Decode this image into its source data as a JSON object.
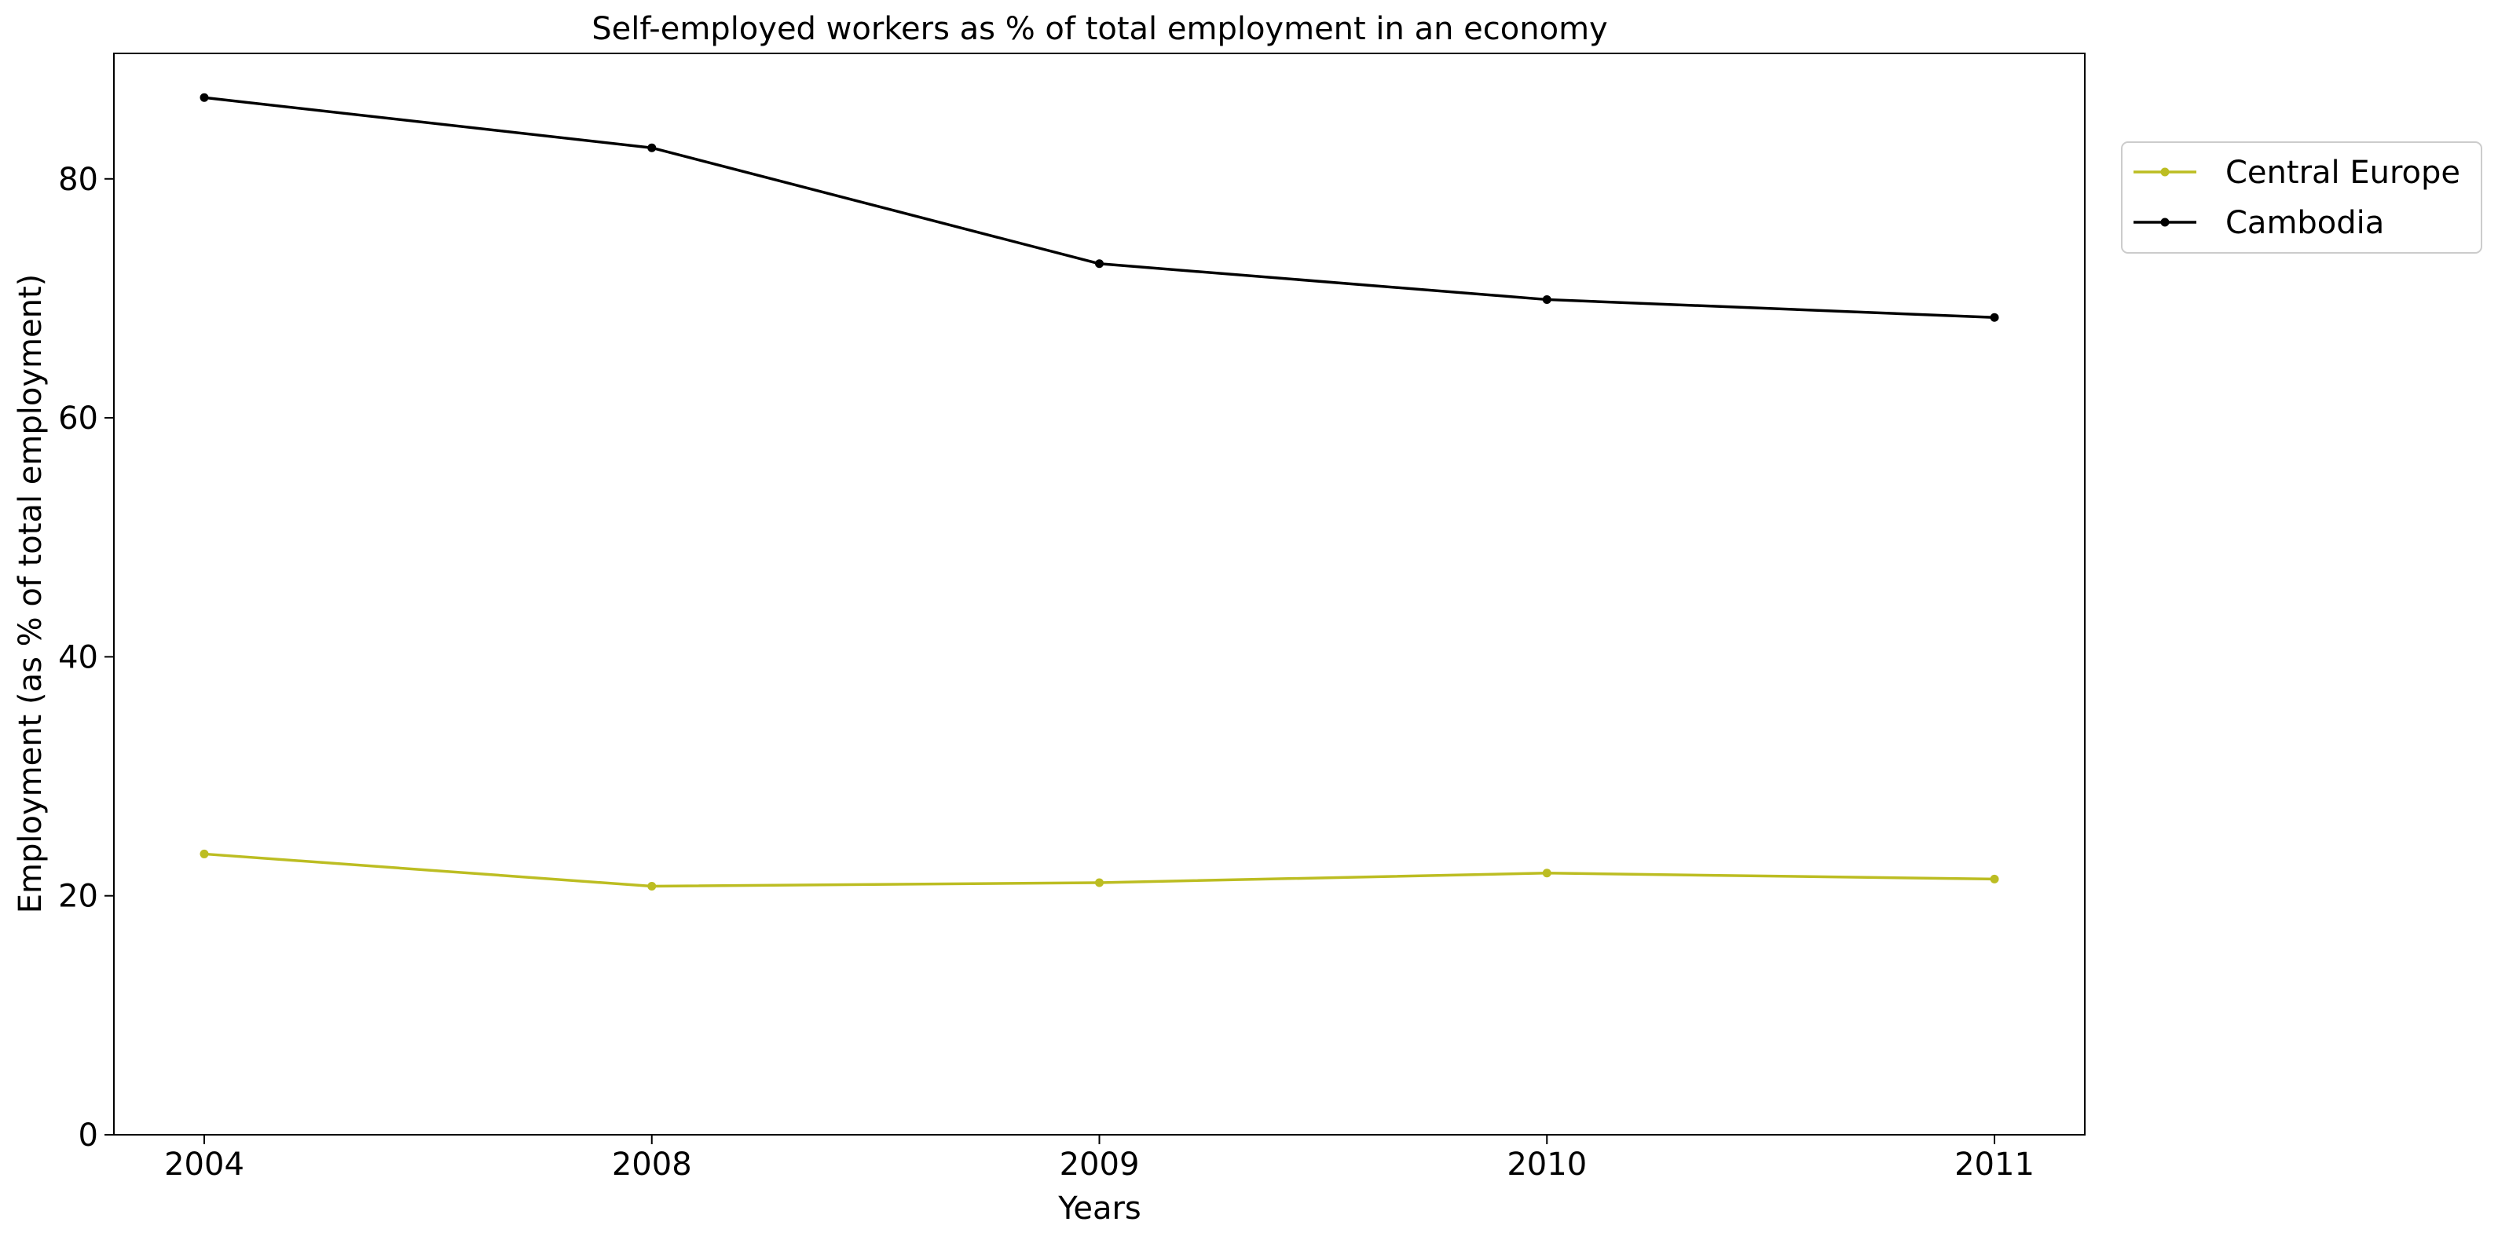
{
  "chart_data": {
    "type": "line",
    "title": "Self-employed workers as % of total employment in an economy",
    "xlabel": "Years",
    "ylabel": "Employment (as % of total employment)",
    "categories": [
      "2004",
      "2008",
      "2009",
      "2010",
      "2011"
    ],
    "ylim": [
      0,
      90.5
    ],
    "yticks": [
      0,
      20,
      40,
      60,
      80
    ],
    "grid": false,
    "legend_position": "outside-top-right",
    "series": [
      {
        "name": "Central Europe",
        "color": "#bcbd22",
        "marker": "circle",
        "values": [
          23.5,
          20.8,
          21.1,
          21.9,
          21.4
        ]
      },
      {
        "name": "Cambodia",
        "color": "#000000",
        "marker": "circle",
        "values": [
          86.8,
          82.6,
          72.9,
          69.9,
          68.4
        ]
      }
    ]
  }
}
